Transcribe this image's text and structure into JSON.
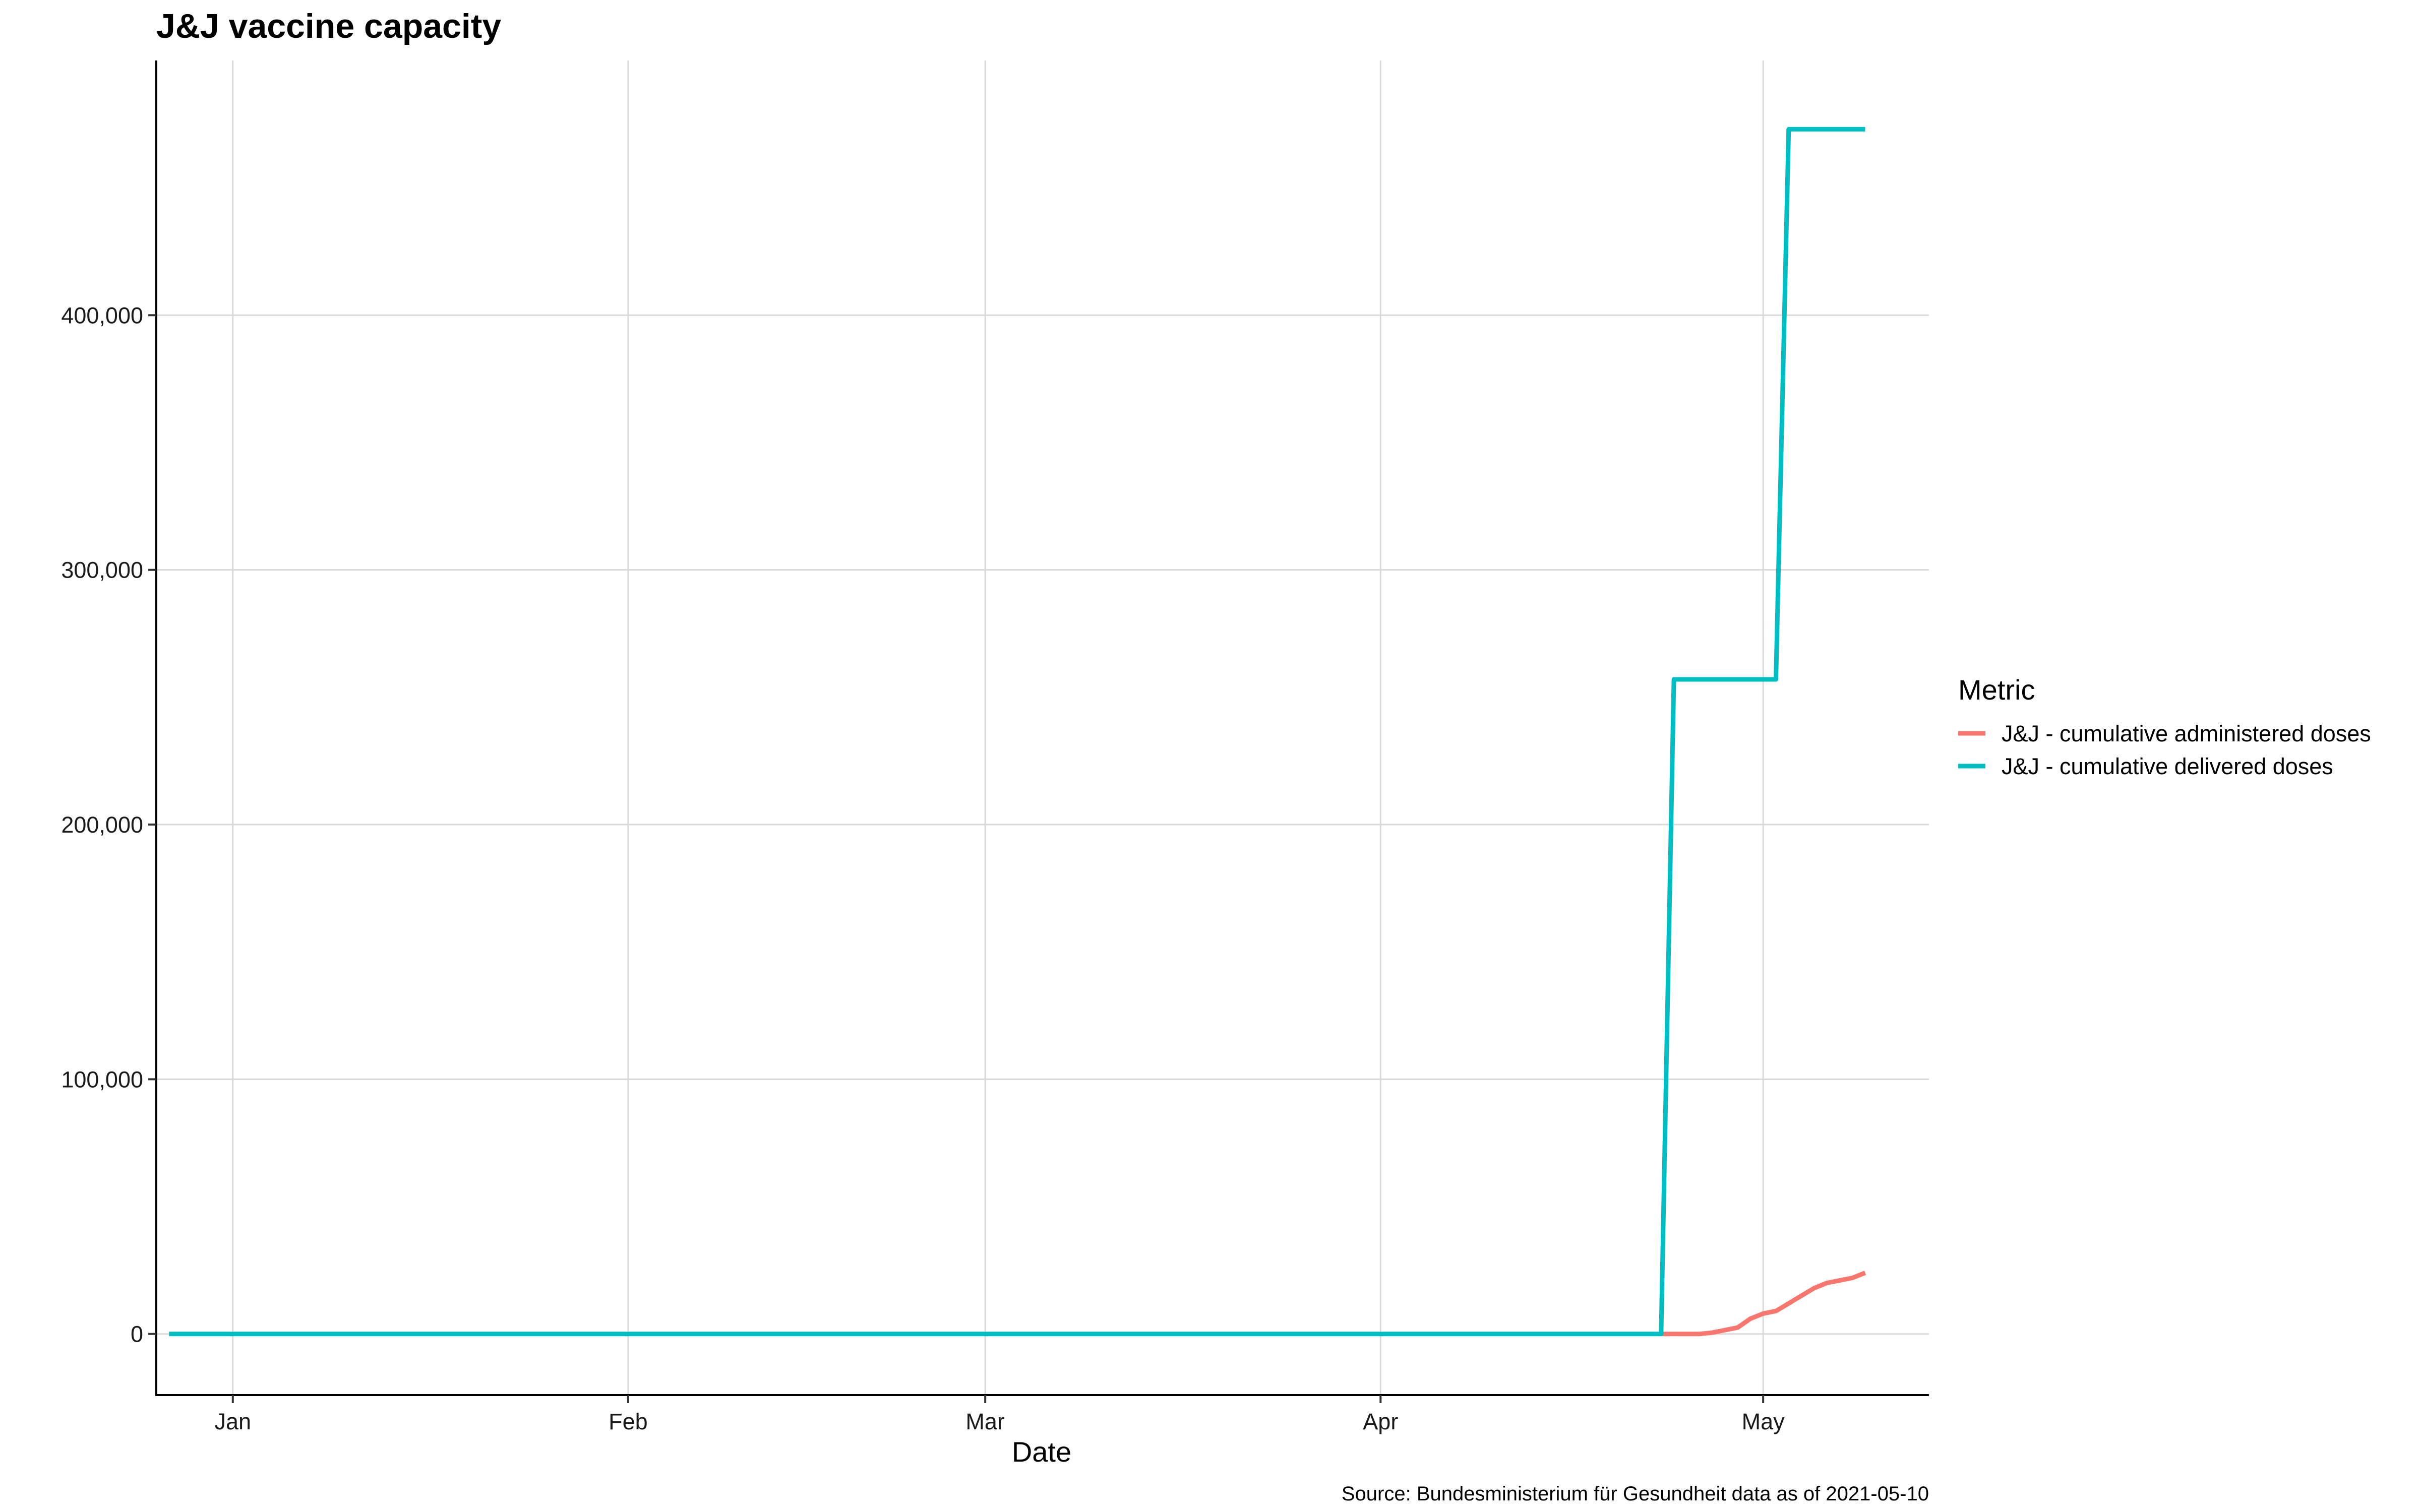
{
  "chart_data": {
    "type": "line",
    "title": "J&J vaccine capacity",
    "xlabel": "Date",
    "ylabel": "",
    "caption": "Source: Bundesministerium für Gesundheit data as of 2021-05-10",
    "legend_title": "Metric",
    "legend_position": "right",
    "grid": true,
    "xlim": [
      "2020-12-26",
      "2021-05-14"
    ],
    "ylim": [
      -24000,
      500000
    ],
    "x_ticks": [
      {
        "date": "2021-01-01",
        "label": "Jan"
      },
      {
        "date": "2021-02-01",
        "label": "Feb"
      },
      {
        "date": "2021-03-01",
        "label": "Mar"
      },
      {
        "date": "2021-04-01",
        "label": "Apr"
      },
      {
        "date": "2021-05-01",
        "label": "May"
      }
    ],
    "y_ticks": [
      {
        "value": 0,
        "label": "0"
      },
      {
        "value": 100000,
        "label": "100,000"
      },
      {
        "value": 200000,
        "label": "200,000"
      },
      {
        "value": 300000,
        "label": "300,000"
      },
      {
        "value": 400000,
        "label": "400,000"
      }
    ],
    "series": [
      {
        "name": "J&J - cumulative administered doses",
        "color": "#F8766D",
        "points": [
          [
            "2021-04-23",
            0
          ],
          [
            "2021-04-24",
            0
          ],
          [
            "2021-04-25",
            0
          ],
          [
            "2021-04-26",
            0
          ],
          [
            "2021-04-27",
            500
          ],
          [
            "2021-04-28",
            1500
          ],
          [
            "2021-04-29",
            2500
          ],
          [
            "2021-04-30",
            6000
          ],
          [
            "2021-05-01",
            8000
          ],
          [
            "2021-05-02",
            9000
          ],
          [
            "2021-05-03",
            12000
          ],
          [
            "2021-05-04",
            15000
          ],
          [
            "2021-05-05",
            18000
          ],
          [
            "2021-05-06",
            20000
          ],
          [
            "2021-05-07",
            21000
          ],
          [
            "2021-05-08",
            22000
          ],
          [
            "2021-05-09",
            24000
          ]
        ]
      },
      {
        "name": "J&J - cumulative delivered doses",
        "color": "#00BFC4",
        "points": [
          [
            "2020-12-27",
            0
          ],
          [
            "2021-04-23",
            0
          ],
          [
            "2021-04-24",
            257000
          ],
          [
            "2021-05-02",
            257000
          ],
          [
            "2021-05-03",
            473000
          ],
          [
            "2021-05-09",
            473000
          ]
        ]
      }
    ]
  }
}
